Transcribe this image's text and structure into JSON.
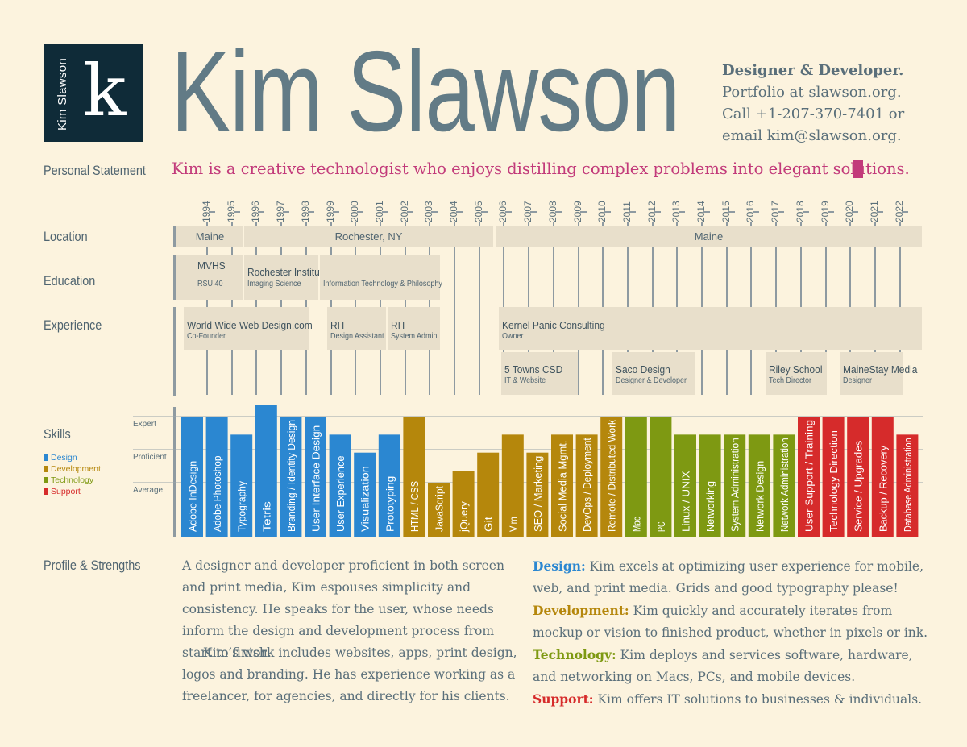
{
  "header": {
    "logo_vertical": "Kim Slawson",
    "logo_mark": "k",
    "name": "Kim Slawson",
    "contact": {
      "role": "Designer & Developer.",
      "portfolio_prefix": "Portfolio at ",
      "portfolio_link": "slawson.org",
      "portfolio_suffix": ".",
      "call": "Call +1-207-370-7401 or",
      "email": "email kim@slawson.org."
    }
  },
  "statement": {
    "label": "Personal Statement",
    "text": "Kim is a creative technologist who enjoys distilling complex problems into elegant solutions."
  },
  "timeline": {
    "years": [
      "1994",
      "1995",
      "1996",
      "1997",
      "1998",
      "1999",
      "2000",
      "2001",
      "2002",
      "2003",
      "2004",
      "2005",
      "2006",
      "2007",
      "2008",
      "2009",
      "2010",
      "2011",
      "2012",
      "2013",
      "2014",
      "2015",
      "2016",
      "2017",
      "2018",
      "2019",
      "2020",
      "2021",
      "2022"
    ],
    "location": {
      "label": "Location",
      "items": [
        {
          "text": "Maine"
        },
        {
          "text": "Rochester, NY"
        },
        {
          "text": "Maine"
        }
      ]
    },
    "education": {
      "label": "Education",
      "items": [
        {
          "title": "MVHS",
          "sub": "RSU 40"
        },
        {
          "title": "Rochester Institute of Technology",
          "sub": "Imaging Science"
        },
        {
          "title": "",
          "sub": "Information Technology & Philosophy"
        }
      ]
    },
    "experience": {
      "label": "Experience",
      "items": [
        {
          "title": "World Wide Web Design.com",
          "sub": "Co-Founder"
        },
        {
          "title": "RIT",
          "sub": "Design Assistant"
        },
        {
          "title": "RIT",
          "sub": "System Admin."
        },
        {
          "title": "Kernel Panic Consulting",
          "sub": "Owner"
        },
        {
          "title": "5 Towns CSD",
          "sub": "IT & Website"
        },
        {
          "title": "Saco Design",
          "sub": "Designer & Developer"
        },
        {
          "title": "Riley School",
          "sub": "Tech Director"
        },
        {
          "title": "MaineStay Media",
          "sub": "Designer"
        }
      ]
    }
  },
  "skills": {
    "label": "Skills",
    "levels": [
      "Expert",
      "Proficient",
      "Average"
    ],
    "legend": [
      {
        "name": "Design",
        "color": "#2b87d1"
      },
      {
        "name": "Development",
        "color": "#b5870c"
      },
      {
        "name": "Technology",
        "color": "#7e9912"
      },
      {
        "name": "Support",
        "color": "#d62b2b"
      }
    ],
    "chart_data": {
      "type": "bar",
      "level_scale": "Expert = 1.0, Proficient = 0.67, Average = 0.33 (relative to bar axis)",
      "categories": [
        "Adobe InDesign",
        "Adobe Photoshop",
        "Typography",
        "Tetris",
        "Branding / Identity Design",
        "User Interface Design",
        "User Experience",
        "Visualization",
        "Prototyping",
        "HTML / CSS",
        "JavaScript",
        "jQuery",
        "Git",
        "Vim",
        "SEO / Marketing",
        "Social Media Mgmt.",
        "DevOps / Deployment",
        "Remote / Distributed Work",
        "Mac",
        "PC",
        "Linux / UNIX",
        "Networking",
        "System Administration",
        "Network Design",
        "Network Administration",
        "User Support / Training",
        "Technology Direction",
        "Service / Upgrades",
        "Backup / Recovery",
        "Database Administration"
      ],
      "groups": [
        "Design",
        "Design",
        "Design",
        "Design",
        "Design",
        "Design",
        "Design",
        "Design",
        "Design",
        "Development",
        "Development",
        "Development",
        "Development",
        "Development",
        "Development",
        "Development",
        "Development",
        "Development",
        "Technology",
        "Technology",
        "Technology",
        "Technology",
        "Technology",
        "Technology",
        "Technology",
        "Support",
        "Support",
        "Support",
        "Support",
        "Support"
      ],
      "values": [
        1.0,
        1.0,
        0.85,
        1.1,
        1.0,
        1.0,
        0.85,
        0.7,
        0.85,
        1.0,
        0.45,
        0.55,
        0.7,
        0.85,
        0.7,
        0.85,
        0.85,
        1.0,
        1.0,
        1.0,
        0.85,
        0.85,
        0.85,
        0.85,
        0.85,
        1.0,
        1.0,
        1.0,
        1.0,
        0.85
      ]
    }
  },
  "profile": {
    "label": "Profile & Strengths",
    "para1": "A designer and developer proficient in both screen and print media, Kim espouses simplicity and consistency. He speaks for the user, whose needs inform the design and development process from start to finish.",
    "para2": "Kim’s work includes websites, apps, print design, logos and branding. He has experience working as a freelancer, for agencies, and directly for his clients.",
    "strengths": [
      {
        "head": "Design:",
        "text": " Kim excels at optimizing user experience for mobile, web, and print media. Grids and good typography please!",
        "color": "#2b87d1"
      },
      {
        "head": "Development:",
        "text": " Kim quickly and accurately iterates from mockup or vision to finished product, whether in pixels or ink.",
        "color": "#b5870c"
      },
      {
        "head": "Technology:",
        "text": " Kim deploys and services software, hardware, and networking on Macs, PCs, and mobile devices.",
        "color": "#7e9912"
      },
      {
        "head": "Support:",
        "text": " Kim offers IT solutions to businesses & individuals.",
        "color": "#d62b2b"
      }
    ]
  }
}
